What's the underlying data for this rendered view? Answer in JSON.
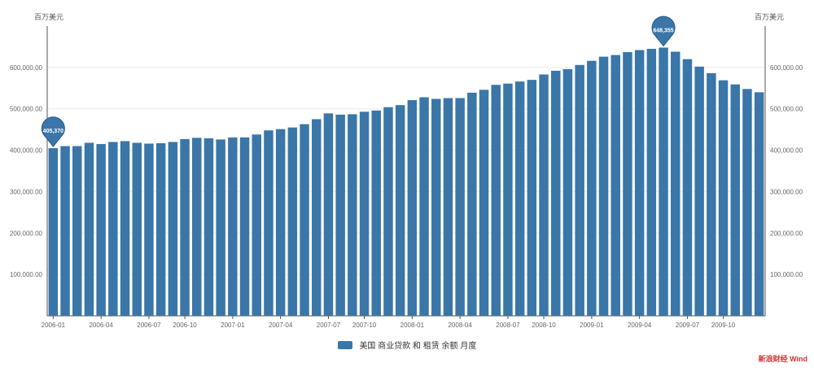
{
  "chart_data": {
    "type": "bar",
    "title": "",
    "y_unit_left": "百万美元",
    "y_unit_right": "百万美元",
    "legend": {
      "series_name": "美国 商业贷款 和 租赁 余额 月度",
      "position": "bottom-center"
    },
    "ylim": [
      0,
      7000000
    ],
    "left_ticks": [
      {
        "value": 1000000,
        "label": "100,000.00"
      },
      {
        "value": 2000000,
        "label": "200,000.00"
      },
      {
        "value": 3000000,
        "label": "300,000.00"
      },
      {
        "value": 4000000,
        "label": "400,000.00"
      },
      {
        "value": 5000000,
        "label": "500,000.00"
      },
      {
        "value": 6000000,
        "label": "600,000.00"
      }
    ],
    "right_ticks": [
      {
        "value": 1000000,
        "label": "100,000.00"
      },
      {
        "value": 2000000,
        "label": "200,000.00"
      },
      {
        "value": 3000000,
        "label": "300,000.00"
      },
      {
        "value": 4000000,
        "label": "400,000.00"
      },
      {
        "value": 5000000,
        "label": "500,000.00"
      },
      {
        "value": 6000000,
        "label": "600,000.00"
      }
    ],
    "x_ticks": [
      {
        "index": 0,
        "label": "2006-01"
      },
      {
        "index": 6,
        "label": "2006-04"
      },
      {
        "index": 12,
        "label": "2006-07"
      },
      {
        "index": 18,
        "label": "2006-10"
      },
      {
        "index": 24,
        "label": "2007-01"
      },
      {
        "index": 30,
        "label": "2007-04"
      },
      {
        "index": 36,
        "label": "2007-07"
      },
      {
        "index": 42,
        "label": "2007-10"
      },
      {
        "index": 48,
        "label": "2008-01"
      },
      {
        "index": 54,
        "label": "2008-04"
      },
      {
        "index": 60,
        "label": "2008-07"
      },
      {
        "index": 66,
        "label": "2008-10"
      },
      {
        "index": 72,
        "label": "2009-01"
      },
      {
        "index": 78,
        "label": "2009-04"
      },
      {
        "index": 84,
        "label": "2009-07"
      },
      {
        "index": 90,
        "label": "2009-10"
      }
    ],
    "values": [
      4050000,
      4100000,
      4100000,
      4180000,
      4150000,
      4200000,
      4220000,
      4180000,
      4160000,
      4170000,
      4200000,
      4270000,
      4300000,
      4290000,
      4260000,
      4310000,
      4310000,
      4380000,
      4480000,
      4510000,
      4550000,
      4630000,
      4750000,
      4890000,
      4860000,
      4870000,
      4930000,
      4960000,
      5040000,
      5090000,
      5210000,
      5280000,
      5240000,
      5260000,
      5260000,
      5390000,
      5460000,
      5580000,
      5610000,
      5660000,
      5700000,
      5830000,
      5920000,
      5960000,
      6060000,
      6160000,
      6260000,
      6300000,
      6370000,
      6420000,
      6450000,
      6480000,
      6380000,
      6200000,
      6020000,
      5860000,
      5690000,
      5590000,
      5480000,
      5400000
    ],
    "markers": [
      {
        "type": "min",
        "index": 0,
        "label": "405,370"
      },
      {
        "type": "max",
        "index": 51,
        "label": "648,355"
      }
    ]
  },
  "watermark": "新浪财经 Wind"
}
